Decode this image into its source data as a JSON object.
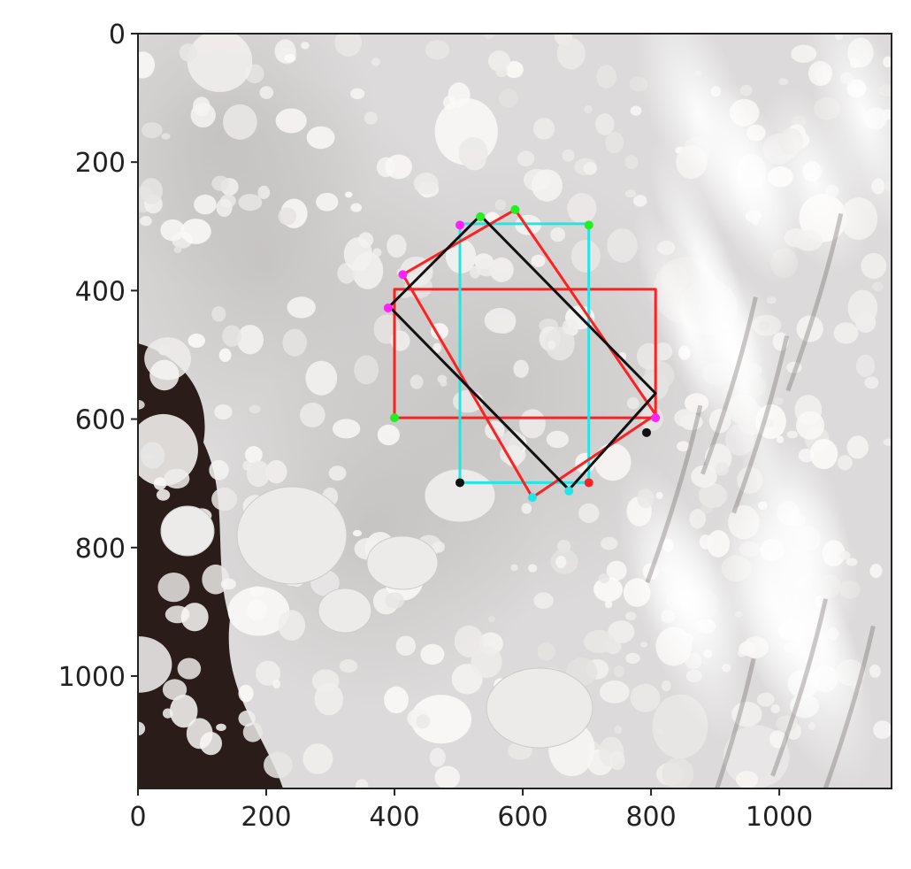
{
  "chart_data": {
    "type": "scatter",
    "xlim": [
      0,
      1175
    ],
    "ylim": [
      1175,
      0
    ],
    "x_ticks": [
      0,
      200,
      400,
      600,
      800,
      1000
    ],
    "y_ticks": [
      0,
      200,
      400,
      600,
      800,
      1000
    ],
    "x_tick_labels": [
      "0",
      "200",
      "400",
      "600",
      "800",
      "1000"
    ],
    "y_tick_labels": [
      "0",
      "200",
      "400",
      "600",
      "800",
      "1000"
    ],
    "grid": false,
    "background": "satellite image of sea ice with cloud cover",
    "series": [
      {
        "color": "#ff2020",
        "kind": "axis-aligned-rectangle",
        "points": [
          [
            400,
            398
          ],
          [
            807,
            398
          ],
          [
            807,
            598
          ],
          [
            400,
            598
          ]
        ]
      },
      {
        "color": "#22e6e6",
        "kind": "axis-aligned-rectangle",
        "points": [
          [
            502,
            296
          ],
          [
            703,
            296
          ],
          [
            703,
            699
          ],
          [
            502,
            699
          ]
        ]
      },
      {
        "color": "#ff2020",
        "kind": "rotated-rectangle",
        "points": [
          [
            588,
            274
          ],
          [
            807,
            593
          ],
          [
            615,
            722
          ],
          [
            413,
            375
          ]
        ]
      },
      {
        "color": "#111111",
        "kind": "rotated-rectangle",
        "points": [
          [
            534,
            283
          ],
          [
            807,
            560
          ],
          [
            672,
            710
          ],
          [
            392,
            425
          ]
        ]
      }
    ],
    "corner_markers": [
      {
        "color": "#22ee22",
        "x": 534,
        "y": 285
      },
      {
        "color": "#22ee22",
        "x": 588,
        "y": 274
      },
      {
        "color": "#22ee22",
        "x": 703,
        "y": 298
      },
      {
        "color": "#22ee22",
        "x": 400,
        "y": 598
      },
      {
        "color": "#ff22ff",
        "x": 502,
        "y": 298
      },
      {
        "color": "#ff22ff",
        "x": 413,
        "y": 375
      },
      {
        "color": "#ff22ff",
        "x": 390,
        "y": 427
      },
      {
        "color": "#ff22ff",
        "x": 807,
        "y": 598
      },
      {
        "color": "#111111",
        "x": 502,
        "y": 699
      },
      {
        "color": "#111111",
        "x": 793,
        "y": 621
      },
      {
        "color": "#ff2020",
        "x": 703,
        "y": 699
      },
      {
        "color": "#22e6e6",
        "x": 615,
        "y": 722
      },
      {
        "color": "#22e6e6",
        "x": 672,
        "y": 712
      }
    ]
  }
}
